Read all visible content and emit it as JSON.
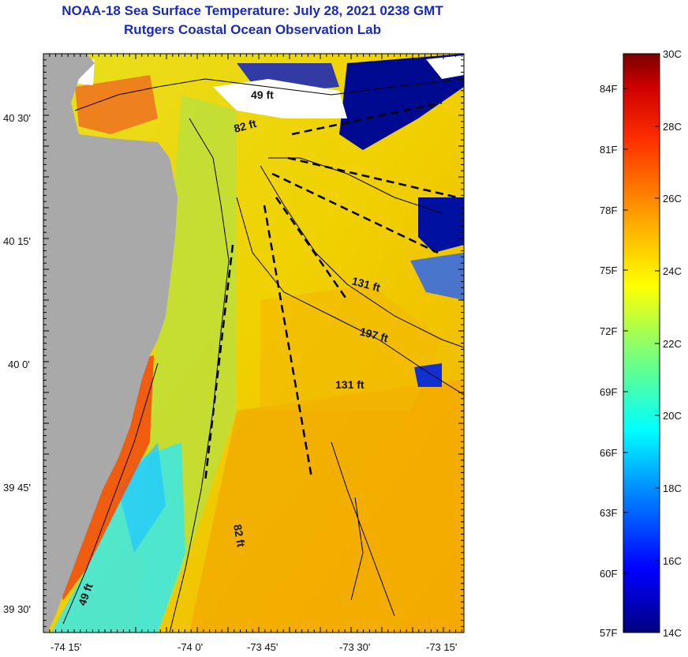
{
  "title": "NOAA-18 Sea Surface Temperature:  July 28, 2021 0238 GMT",
  "subtitle": "Rutgers Coastal Ocean Observation Lab",
  "map": {
    "lat_labels": [
      "40 30'",
      "40 15'",
      "40 0'",
      "39 45'",
      "39 30'"
    ],
    "lon_labels": [
      "-74 15'",
      "-74 0'",
      "-73 45'",
      "-73 30'",
      "-73 15'"
    ],
    "contour_labels": [
      "49 ft",
      "82 ft",
      "131 ft",
      "197 ft",
      "131 ft",
      "82 ft",
      "49 ft"
    ]
  },
  "colorbar": {
    "fahrenheit_labels": [
      "84F",
      "81F",
      "78F",
      "75F",
      "72F",
      "69F",
      "66F",
      "63F",
      "60F",
      "57F"
    ],
    "celsius_labels": [
      "30C",
      "28C",
      "26C",
      "24C",
      "22C",
      "20C",
      "18C",
      "16C",
      "14C"
    ],
    "colors": [
      "#000080",
      "#0000ff",
      "#00a0ff",
      "#00ffff",
      "#60ff90",
      "#ffff00",
      "#ffa000",
      "#ff4000",
      "#d00000",
      "#800000"
    ]
  },
  "legend_colors": {
    "land": "#a9a9a9",
    "no_data": "#ffffff",
    "contour_line": "#000000"
  }
}
